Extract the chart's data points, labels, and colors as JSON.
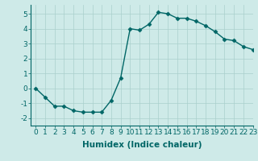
{
  "x": [
    0,
    1,
    2,
    3,
    4,
    5,
    6,
    7,
    8,
    9,
    10,
    11,
    12,
    13,
    14,
    15,
    16,
    17,
    18,
    19,
    20,
    21,
    22,
    23
  ],
  "y": [
    0.0,
    -0.6,
    -1.2,
    -1.2,
    -1.5,
    -1.6,
    -1.6,
    -1.6,
    -0.8,
    0.7,
    4.0,
    3.9,
    4.3,
    5.1,
    5.0,
    4.7,
    4.7,
    4.5,
    4.2,
    3.8,
    3.3,
    3.2,
    2.8,
    2.6
  ],
  "xlabel": "Humidex (Indice chaleur)",
  "xlim": [
    -0.5,
    23
  ],
  "ylim": [
    -2.5,
    5.6
  ],
  "yticks": [
    -2,
    -1,
    0,
    1,
    2,
    3,
    4,
    5
  ],
  "line_color": "#006666",
  "marker": "D",
  "marker_size": 2.5,
  "bg_color": "#ceeae8",
  "grid_color": "#aacfcc",
  "tick_label_fontsize": 6.5,
  "xlabel_fontsize": 7.5
}
